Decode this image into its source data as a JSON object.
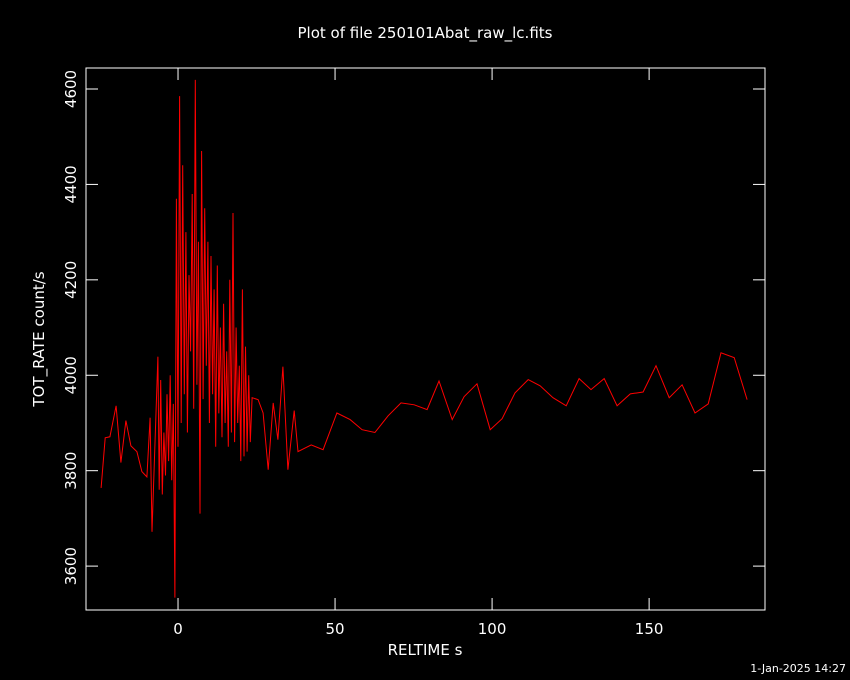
{
  "chart_data": {
    "type": "line",
    "title": "Plot of file 250101Abat_raw_lc.fits",
    "x_label": "RELTIME  s",
    "y_label": "TOT_RATE  count/s",
    "footnote": "1-Jan-2025 14:27",
    "color": "#ff0000",
    "x": [
      -24.5,
      -23.2,
      -21.7,
      -19.7,
      -18.2,
      -16.6,
      -15.0,
      -13.1,
      -11.5,
      -9.9,
      -8.9,
      -8.3,
      -7.3,
      -6.4,
      -6.0,
      -5.5,
      -5.0,
      -4.5,
      -4.0,
      -3.5,
      -3.0,
      -2.5,
      -2.0,
      -1.5,
      -1.0,
      -0.5,
      0.0,
      0.5,
      1.0,
      1.5,
      2.0,
      2.5,
      3.0,
      3.5,
      4.0,
      4.5,
      5.0,
      5.5,
      6.0,
      6.5,
      7.0,
      7.5,
      8.0,
      8.5,
      9.0,
      9.5,
      10.0,
      10.5,
      11.0,
      11.5,
      12.0,
      12.5,
      13.0,
      13.5,
      14.0,
      14.5,
      15.0,
      15.5,
      16.0,
      16.5,
      17.0,
      17.5,
      18.0,
      18.5,
      19.0,
      19.5,
      20.0,
      20.5,
      21.0,
      21.5,
      22.0,
      22.5,
      23.0,
      23.6,
      25.5,
      27.1,
      28.7,
      30.3,
      31.8,
      33.4,
      35.0,
      37.0,
      38.2,
      42.4,
      46.2,
      50.6,
      54.8,
      58.6,
      62.7,
      66.9,
      71.0,
      75.2,
      79.3,
      83.1,
      87.3,
      91.1,
      95.2,
      99.4,
      103.2,
      107.3,
      111.5,
      115.3,
      119.4,
      123.6,
      127.7,
      131.5,
      135.7,
      139.8,
      144.0,
      148.1,
      152.2,
      156.4,
      160.5,
      164.6,
      168.8,
      172.9,
      177.1,
      181.2
    ],
    "values": [
      3764,
      3869,
      3871,
      3936,
      3817,
      3905,
      3852,
      3840,
      3798,
      3787,
      3911,
      3672,
      3865,
      4039,
      3760,
      3990,
      3750,
      3880,
      3790,
      3960,
      3820,
      4000,
      3780,
      3940,
      3534,
      4370,
      3850,
      4585,
      3900,
      4440,
      3960,
      4300,
      3880,
      4210,
      4050,
      4380,
      3930,
      4619,
      3980,
      4280,
      3710,
      4470,
      3950,
      4350,
      4020,
      4280,
      3900,
      4250,
      3960,
      4180,
      3850,
      4230,
      3920,
      4100,
      3870,
      4150,
      3900,
      4050,
      3850,
      4200,
      3880,
      4340,
      3860,
      4100,
      3900,
      4020,
      3820,
      4180,
      3830,
      4060,
      3840,
      4000,
      3860,
      3953,
      3949,
      3921,
      3802,
      3942,
      3865,
      4018,
      3802,
      3926,
      3840,
      3854,
      3844,
      3921,
      3907,
      3886,
      3880,
      3915,
      3942,
      3938,
      3928,
      3988,
      3907,
      3955,
      3982,
      3886,
      3909,
      3963,
      3991,
      3978,
      3953,
      3936,
      3993,
      3970,
      3993,
      3936,
      3961,
      3965,
      4020,
      3953,
      3980,
      3921,
      3940,
      4047,
      4037,
      3949
    ],
    "xlim": [
      -29.3,
      186.9
    ],
    "ylim": [
      3508,
      4644
    ],
    "xticks": [
      0,
      50,
      100,
      150
    ],
    "yticks": [
      3600,
      3800,
      4000,
      4200,
      4400,
      4600
    ]
  }
}
